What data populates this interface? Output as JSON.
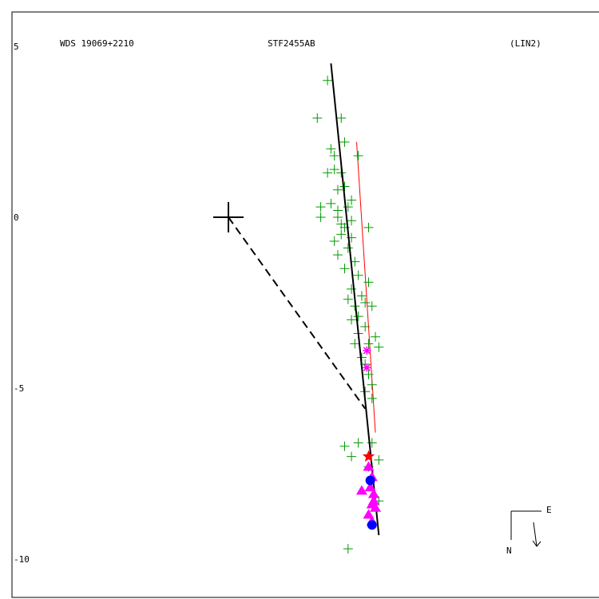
{
  "header": {
    "left": "WDS 19069+2210",
    "center": "STF2455AB",
    "right": "(LIN2)"
  },
  "compass": {
    "east": "E",
    "north": "N"
  },
  "chart_data": {
    "type": "scatter",
    "ticks": [
      {
        "value": 5,
        "label": "5"
      },
      {
        "value": 0,
        "label": "0"
      },
      {
        "value": -5,
        "label": "-5"
      },
      {
        "value": -10,
        "label": "-10"
      }
    ],
    "origin": [
      0,
      0
    ],
    "linear_fit_line": [
      [
        3.0,
        4.5
      ],
      [
        4.4,
        -9.3
      ]
    ],
    "closest_approach_point": [
      4.0,
      -5.6
    ],
    "red_trend_line": [
      [
        3.75,
        2.2
      ],
      [
        4.3,
        -6.3
      ]
    ],
    "green_plus_observations": [
      [
        2.9,
        4.0
      ],
      [
        2.6,
        2.9
      ],
      [
        3.3,
        2.9
      ],
      [
        3.0,
        2.0
      ],
      [
        3.4,
        2.2
      ],
      [
        3.1,
        1.8
      ],
      [
        3.8,
        1.8
      ],
      [
        3.1,
        1.4
      ],
      [
        3.3,
        1.3
      ],
      [
        2.9,
        1.3
      ],
      [
        3.4,
        0.9
      ],
      [
        3.2,
        0.8
      ],
      [
        3.6,
        0.5
      ],
      [
        2.7,
        0.3
      ],
      [
        3.0,
        0.4
      ],
      [
        3.5,
        0.3
      ],
      [
        2.7,
        0.0
      ],
      [
        3.2,
        0.0
      ],
      [
        3.6,
        -0.1
      ],
      [
        4.1,
        -0.3
      ],
      [
        3.3,
        -0.5
      ],
      [
        3.6,
        -0.6
      ],
      [
        3.1,
        -0.7
      ],
      [
        3.5,
        -0.9
      ],
      [
        3.2,
        -1.1
      ],
      [
        3.7,
        -1.3
      ],
      [
        3.4,
        -1.5
      ],
      [
        3.8,
        -1.7
      ],
      [
        4.1,
        -1.9
      ],
      [
        3.6,
        -2.1
      ],
      [
        3.9,
        -2.3
      ],
      [
        3.5,
        -2.4
      ],
      [
        4.0,
        -2.5
      ],
      [
        3.7,
        -2.6
      ],
      [
        4.2,
        -2.6
      ],
      [
        3.8,
        -2.9
      ],
      [
        3.6,
        -3.0
      ],
      [
        4.0,
        -3.2
      ],
      [
        3.8,
        -3.4
      ],
      [
        4.3,
        -3.5
      ],
      [
        3.7,
        -3.7
      ],
      [
        4.1,
        -3.7
      ],
      [
        4.4,
        -3.8
      ],
      [
        3.9,
        -4.1
      ],
      [
        4.0,
        -4.3
      ],
      [
        4.1,
        -4.6
      ],
      [
        4.2,
        -4.9
      ],
      [
        4.0,
        -5.1
      ],
      [
        4.2,
        -5.3
      ],
      [
        3.4,
        -6.7
      ],
      [
        3.8,
        -6.6
      ],
      [
        4.2,
        -6.6
      ],
      [
        3.6,
        -7.0
      ],
      [
        4.4,
        -7.1
      ],
      [
        4.1,
        -7.3
      ],
      [
        4.4,
        -8.3
      ],
      [
        3.5,
        -9.7
      ],
      [
        3.2,
        0.2
      ],
      [
        3.3,
        -0.2
      ],
      [
        3.4,
        -0.3
      ]
    ],
    "magenta_asterisk_observations": [
      [
        4.05,
        -3.9
      ],
      [
        4.05,
        -4.4
      ]
    ],
    "red_star_observations": [
      [
        4.1,
        -7.0
      ]
    ],
    "magenta_triangle_observations": [
      [
        4.1,
        -7.3
      ],
      [
        4.2,
        -7.6
      ],
      [
        4.15,
        -7.9
      ],
      [
        4.25,
        -8.1
      ],
      [
        3.9,
        -8.0
      ],
      [
        4.2,
        -8.4
      ],
      [
        4.3,
        -8.5
      ],
      [
        4.1,
        -8.7
      ],
      [
        4.2,
        -8.9
      ],
      [
        4.25,
        -8.3
      ]
    ],
    "blue_circle_observations": [
      [
        4.15,
        -7.7
      ],
      [
        4.2,
        -9.0
      ]
    ]
  }
}
